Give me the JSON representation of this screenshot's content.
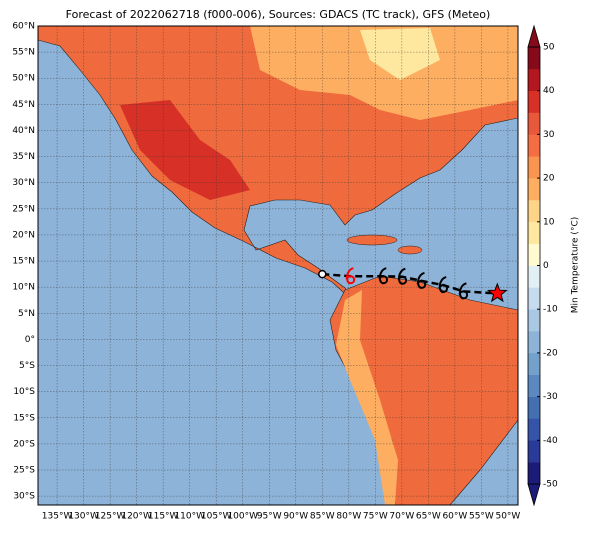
{
  "title": "Forecast of 2022062718 (f000-006), Sources: GDACS (TC track), GFS (Meteo)",
  "map": {
    "lon_range": [
      -138.6,
      -48.1
    ],
    "lat_range": [
      60,
      -31.7
    ],
    "lat_ticks": [
      {
        "value": 60,
        "label": "60°N"
      },
      {
        "value": 55,
        "label": "55°N"
      },
      {
        "value": 50,
        "label": "50°N"
      },
      {
        "value": 45,
        "label": "45°N"
      },
      {
        "value": 40,
        "label": "40°N"
      },
      {
        "value": 35,
        "label": "35°N"
      },
      {
        "value": 30,
        "label": "30°N"
      },
      {
        "value": 25,
        "label": "25°N"
      },
      {
        "value": 20,
        "label": "20°N"
      },
      {
        "value": 15,
        "label": "15°N"
      },
      {
        "value": 10,
        "label": "10°N"
      },
      {
        "value": 5,
        "label": "5°N"
      },
      {
        "value": 0,
        "label": "0°"
      },
      {
        "value": -5,
        "label": "5°S"
      },
      {
        "value": -10,
        "label": "10°S"
      },
      {
        "value": -15,
        "label": "15°S"
      },
      {
        "value": -20,
        "label": "20°S"
      },
      {
        "value": -25,
        "label": "25°S"
      },
      {
        "value": -30,
        "label": "30°S"
      }
    ],
    "lon_ticks": [
      {
        "value": -135,
        "label": "135°W"
      },
      {
        "value": -130,
        "label": "130°W"
      },
      {
        "value": -125,
        "label": "125°W"
      },
      {
        "value": -120,
        "label": "120°W"
      },
      {
        "value": -115,
        "label": "115°W"
      },
      {
        "value": -110,
        "label": "110°W"
      },
      {
        "value": -105,
        "label": "105°W"
      },
      {
        "value": -100,
        "label": "100°W"
      },
      {
        "value": -95,
        "label": "95°W"
      },
      {
        "value": -90,
        "label": "90°W"
      },
      {
        "value": -85,
        "label": "85°W"
      },
      {
        "value": -80,
        "label": "80°W"
      },
      {
        "value": -75,
        "label": "75°W"
      },
      {
        "value": -70,
        "label": "70°W"
      },
      {
        "value": -65,
        "label": "65°W"
      },
      {
        "value": -60,
        "label": "60°W"
      },
      {
        "value": -55,
        "label": "55°W"
      },
      {
        "value": -50,
        "label": "50°W"
      }
    ],
    "track": [
      {
        "lon": -85.0,
        "lat": 12.5,
        "marker": "circle"
      },
      {
        "lon": -79.7,
        "lat": 12.1,
        "marker": "storm",
        "color": "#ff0000"
      },
      {
        "lon": -73.5,
        "lat": 12.1,
        "marker": "storm",
        "color": "#000000"
      },
      {
        "lon": -69.9,
        "lat": 12.0,
        "marker": "storm",
        "color": "#000000"
      },
      {
        "lon": -66.3,
        "lat": 11.2,
        "marker": "storm",
        "color": "#000000"
      },
      {
        "lon": -62.2,
        "lat": 10.4,
        "marker": "storm",
        "color": "#000000"
      },
      {
        "lon": -58.4,
        "lat": 9.2,
        "marker": "storm",
        "color": "#000000"
      },
      {
        "lon": -52.0,
        "lat": 8.8,
        "marker": "star",
        "color": "#ff0000"
      }
    ]
  },
  "colorbar": {
    "label": "Min Temperature (°C)",
    "range": [
      -50,
      50
    ],
    "ticks": [
      50,
      40,
      30,
      20,
      10,
      0,
      -10,
      -20,
      -30,
      -40,
      -50
    ],
    "colors": [
      "#1c1c78",
      "#2a3a98",
      "#3553a8",
      "#4470b2",
      "#5b88c0",
      "#74a0cc",
      "#8db3d8",
      "#a8c8e4",
      "#c6dcee",
      "#e2f0f6",
      "#fffad0",
      "#fee8a0",
      "#fed488",
      "#fdae61",
      "#f99550",
      "#f46d43",
      "#e8583a",
      "#d73027",
      "#b3171f",
      "#870a1a"
    ]
  }
}
